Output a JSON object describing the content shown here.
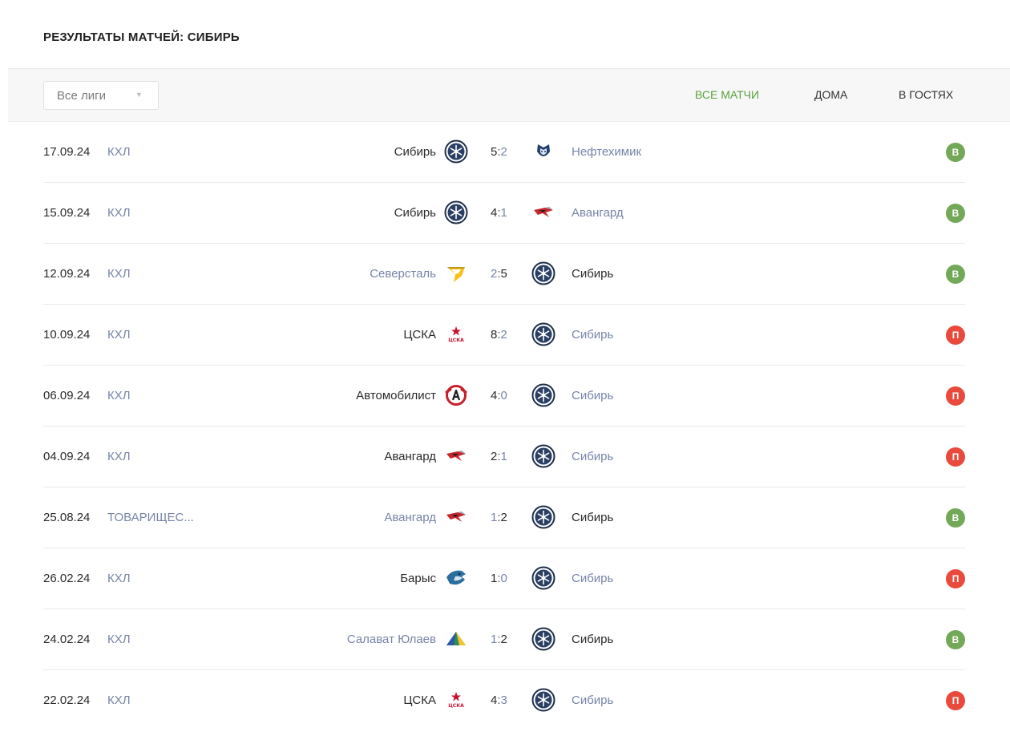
{
  "title": "РЕЗУЛЬТАТЫ МАТЧЕЙ: СИБИРЬ",
  "filter": {
    "league_select": "Все лиги",
    "tabs": [
      {
        "label": "ВСЕ МАТЧИ",
        "active": true
      },
      {
        "label": "ДОМА",
        "active": false
      },
      {
        "label": "В ГОСТЯХ",
        "active": false
      }
    ]
  },
  "colors": {
    "accent": "#5aa03c",
    "win": "#72a857",
    "loss": "#ea4a3c",
    "link": "#7784a8"
  },
  "matches": [
    {
      "date": "17.09.24",
      "league": "КХЛ",
      "home": "Сибирь",
      "home_logo": "sibir-logo",
      "home_score": "5",
      "away_score": "2",
      "away": "Нефтехимик",
      "away_logo": "neftekhimik-logo",
      "winner": "home",
      "result": "В",
      "outcome": "win"
    },
    {
      "date": "15.09.24",
      "league": "КХЛ",
      "home": "Сибирь",
      "home_logo": "sibir-logo",
      "home_score": "4",
      "away_score": "1",
      "away": "Авангард",
      "away_logo": "avangard-logo",
      "winner": "home",
      "result": "В",
      "outcome": "win"
    },
    {
      "date": "12.09.24",
      "league": "КХЛ",
      "home": "Северсталь",
      "home_logo": "severstal-logo",
      "home_score": "2",
      "away_score": "5",
      "away": "Сибирь",
      "away_logo": "sibir-logo",
      "winner": "away",
      "result": "В",
      "outcome": "win"
    },
    {
      "date": "10.09.24",
      "league": "КХЛ",
      "home": "ЦСКА",
      "home_logo": "cska-logo",
      "home_score": "8",
      "away_score": "2",
      "away": "Сибирь",
      "away_logo": "sibir-logo",
      "winner": "home",
      "result": "П",
      "outcome": "loss"
    },
    {
      "date": "06.09.24",
      "league": "КХЛ",
      "home": "Автомобилист",
      "home_logo": "avtomobilist-logo",
      "home_score": "4",
      "away_score": "0",
      "away": "Сибирь",
      "away_logo": "sibir-logo",
      "winner": "home",
      "result": "П",
      "outcome": "loss"
    },
    {
      "date": "04.09.24",
      "league": "КХЛ",
      "home": "Авангард",
      "home_logo": "avangard-logo",
      "home_score": "2",
      "away_score": "1",
      "away": "Сибирь",
      "away_logo": "sibir-logo",
      "winner": "home",
      "result": "П",
      "outcome": "loss"
    },
    {
      "date": "25.08.24",
      "league": "ТОВАРИЩЕС...",
      "home": "Авангард",
      "home_logo": "avangard-logo",
      "home_score": "1",
      "away_score": "2",
      "away": "Сибирь",
      "away_logo": "sibir-logo",
      "winner": "away",
      "result": "В",
      "outcome": "win"
    },
    {
      "date": "26.02.24",
      "league": "КХЛ",
      "home": "Барыс",
      "home_logo": "barys-logo",
      "home_score": "1",
      "away_score": "0",
      "away": "Сибирь",
      "away_logo": "sibir-logo",
      "winner": "home",
      "result": "П",
      "outcome": "loss"
    },
    {
      "date": "24.02.24",
      "league": "КХЛ",
      "home": "Салават Юлаев",
      "home_logo": "salavat-yulaev-logo",
      "home_score": "1",
      "away_score": "2",
      "away": "Сибирь",
      "away_logo": "sibir-logo",
      "winner": "away",
      "result": "В",
      "outcome": "win"
    },
    {
      "date": "22.02.24",
      "league": "КХЛ",
      "home": "ЦСКА",
      "home_logo": "cska-logo",
      "home_score": "4",
      "away_score": "3",
      "away": "Сибирь",
      "away_logo": "sibir-logo",
      "winner": "home",
      "result": "П",
      "outcome": "loss"
    }
  ]
}
